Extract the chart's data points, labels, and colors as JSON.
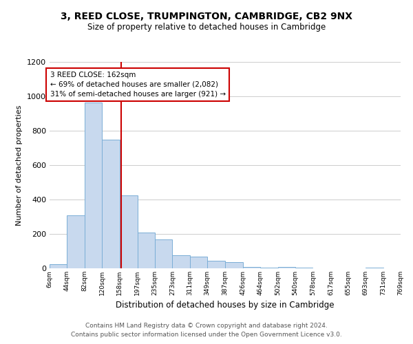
{
  "title": "3, REED CLOSE, TRUMPINGTON, CAMBRIDGE, CB2 9NX",
  "subtitle": "Size of property relative to detached houses in Cambridge",
  "xlabel": "Distribution of detached houses by size in Cambridge",
  "ylabel": "Number of detached properties",
  "bar_color": "#c8d9ee",
  "bar_edge_color": "#7aaed6",
  "grid_color": "#cccccc",
  "background_color": "#ffffff",
  "annotation_line_color": "#cc0000",
  "annotation_box_color": "#cc0000",
  "annotation_text_line1": "3 REED CLOSE: 162sqm",
  "annotation_text_line2": "← 69% of detached houses are smaller (2,082)",
  "annotation_text_line3": "31% of semi-detached houses are larger (921) →",
  "property_size": 162,
  "bin_edges": [
    6,
    44,
    82,
    120,
    158,
    197,
    235,
    273,
    311,
    349,
    387,
    426,
    464,
    502,
    540,
    578,
    617,
    655,
    693,
    731,
    769
  ],
  "bin_labels": [
    "6sqm",
    "44sqm",
    "82sqm",
    "120sqm",
    "158sqm",
    "197sqm",
    "235sqm",
    "273sqm",
    "311sqm",
    "349sqm",
    "387sqm",
    "426sqm",
    "464sqm",
    "502sqm",
    "540sqm",
    "578sqm",
    "617sqm",
    "655sqm",
    "693sqm",
    "731sqm",
    "769sqm"
  ],
  "bar_heights": [
    25,
    310,
    965,
    750,
    425,
    210,
    170,
    75,
    70,
    45,
    35,
    10,
    5,
    8,
    3,
    2,
    1,
    0,
    5,
    1
  ],
  "ylim": [
    0,
    1200
  ],
  "yticks": [
    0,
    200,
    400,
    600,
    800,
    1000,
    1200
  ],
  "footer1": "Contains HM Land Registry data © Crown copyright and database right 2024.",
  "footer2": "Contains public sector information licensed under the Open Government Licence v3.0."
}
